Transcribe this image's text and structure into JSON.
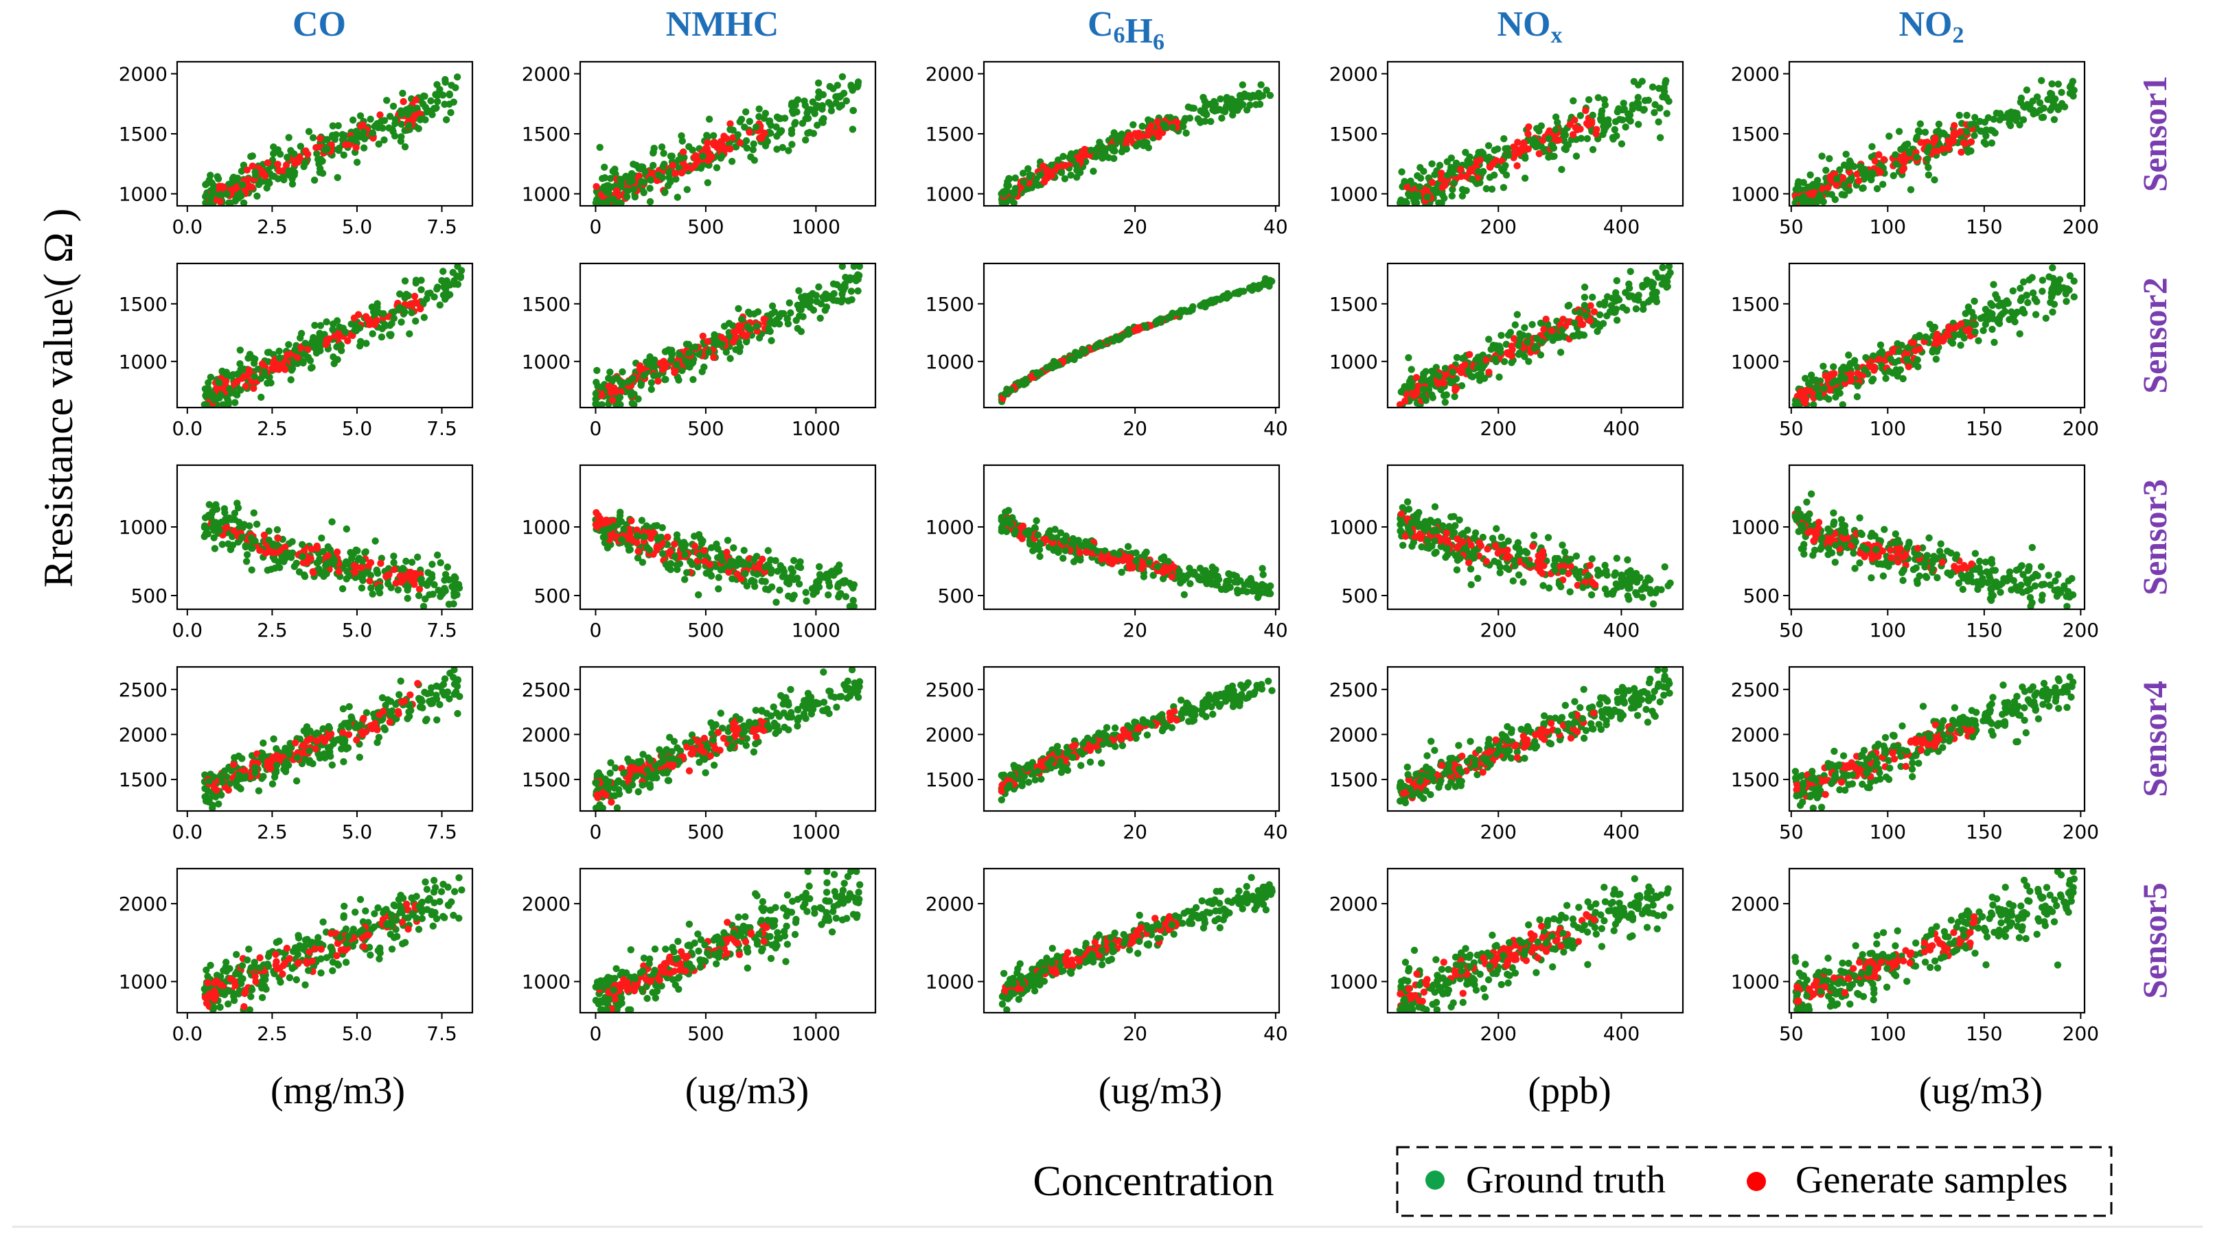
{
  "figure": {
    "y_axis_label": "Rresistance value\\( Ω )",
    "x_axis_label": "Concentration",
    "legend": [
      {
        "label": "Ground truth",
        "color": "#0fa24a"
      },
      {
        "label": "Generate samples",
        "color": "#ff0000"
      }
    ],
    "colors": {
      "header": "#1f6fb8",
      "sensor_label": "#7a3db0",
      "ground_truth": "#1a8a1a",
      "generated": "#ff1a1a"
    }
  },
  "chart_data": {
    "type": "scatter",
    "columns": [
      {
        "title": "CO",
        "unit": "(mg/m3)",
        "xlim": [
          -0.3,
          8.4
        ],
        "xticks": [
          0.0,
          2.5,
          5.0,
          7.5
        ],
        "tick_labels": [
          "0.0",
          "2.5",
          "5.0",
          "7.5"
        ],
        "xmin": 0.5,
        "xmax": 8.1,
        "gen_max": 6.9
      },
      {
        "title": "NMHC",
        "unit": "(ug/m3)",
        "xlim": [
          -70,
          1270
        ],
        "xticks": [
          0,
          500,
          1000
        ],
        "tick_labels": [
          "0",
          "500",
          "1000"
        ],
        "xmin": 0,
        "xmax": 1200,
        "gen_max": 780
      },
      {
        "title": "C6H6",
        "unit": "(ug/m3)",
        "xlim": [
          -1.5,
          40.5
        ],
        "xticks": [
          20,
          40
        ],
        "tick_labels": [
          "20",
          "40"
        ],
        "xmin": 1.0,
        "xmax": 39.5,
        "gen_max": 26.0
      },
      {
        "title": "NOx",
        "unit": "(ppb)",
        "xlim": [
          20,
          500
        ],
        "xticks": [
          200,
          400
        ],
        "tick_labels": [
          "200",
          "400"
        ],
        "xmin": 40,
        "xmax": 480,
        "gen_max": 360
      },
      {
        "title": "NO2",
        "unit": "(ug/m3)",
        "xlim": [
          49,
          202
        ],
        "xticks": [
          50,
          100,
          150,
          200
        ],
        "tick_labels": [
          "50",
          "100",
          "150",
          "200"
        ],
        "xmin": 52,
        "xmax": 197,
        "gen_max": 145
      }
    ],
    "rows": [
      {
        "label": "Sensor1",
        "ylim": [
          900,
          2100
        ],
        "yticks": [
          1000,
          1500,
          2000
        ],
        "y_low": 950,
        "y_high": 1850,
        "trend": "up",
        "noise": 95
      },
      {
        "label": "Sensor2",
        "ylim": [
          600,
          1850
        ],
        "yticks": [
          1000,
          1500
        ],
        "y_low": 680,
        "y_high": 1700,
        "trend": "up",
        "noise": 90
      },
      {
        "label": "Sensor3",
        "ylim": [
          400,
          1450
        ],
        "yticks": [
          500,
          1000
        ],
        "y_low": 1050,
        "y_high": 540,
        "trend": "down",
        "noise": 80
      },
      {
        "label": "Sensor4",
        "ylim": [
          1150,
          2750
        ],
        "yticks": [
          1500,
          2000,
          2500
        ],
        "y_low": 1380,
        "y_high": 2550,
        "trend": "up",
        "noise": 120
      },
      {
        "label": "Sensor5",
        "ylim": [
          600,
          2450
        ],
        "yticks": [
          1000,
          2000
        ],
        "y_low": 800,
        "y_high": 2150,
        "trend": "up",
        "noise": 170
      }
    ],
    "series": [
      {
        "name": "Ground truth",
        "color": "#1a8a1a",
        "points_per_panel": 240
      },
      {
        "name": "Generate samples",
        "color": "#ff1a1a",
        "points_per_panel": 90
      }
    ]
  }
}
